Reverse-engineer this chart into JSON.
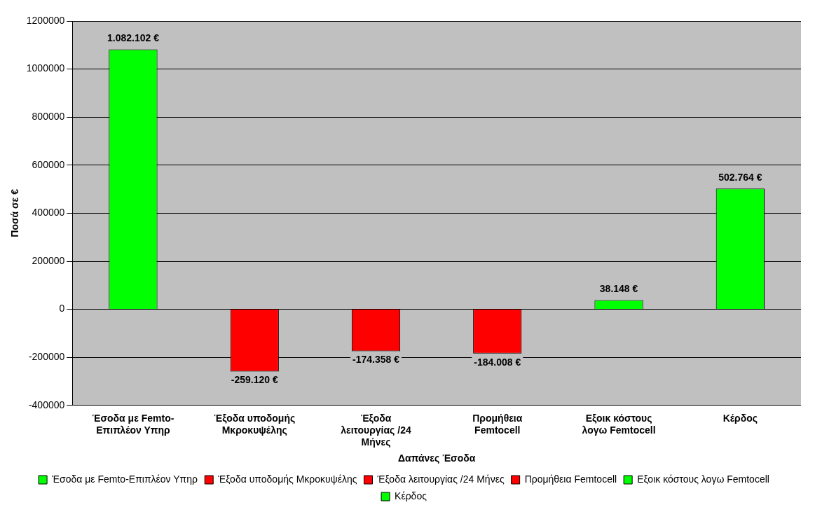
{
  "chart_data": {
    "type": "bar",
    "xlabel": "Δαπάνες Έσοδα",
    "ylabel": "Ποσά σε €",
    "categories": [
      "Έσοδα με Femto-Επιπλέον Υπηρ",
      "Έξοδα υποδομής Μκροκυψέλης",
      "Έξοδα λειτουργίας /24 Μήνες",
      "Προμήθεια Femtocell",
      "Εξοικ κόστους λογω Femtocell",
      "Κέρδος"
    ],
    "series": [
      {
        "name": "Έσοδα με Femto-Επιπλέον Υπηρ",
        "color": "#00ff00",
        "values": [
          1082102,
          null,
          null,
          null,
          null,
          null
        ],
        "value_labels": [
          "1.082.102 €",
          null,
          null,
          null,
          null,
          null
        ]
      },
      {
        "name": "Έξοδα υποδομής Μκροκυψέλης",
        "color": "#ff0000",
        "values": [
          null,
          -259120,
          null,
          null,
          null,
          null
        ],
        "value_labels": [
          null,
          "-259.120 €",
          null,
          null,
          null,
          null
        ]
      },
      {
        "name": "Έξοδα λειτουργίας /24 Μήνες",
        "color": "#ff0000",
        "values": [
          null,
          null,
          -174358,
          null,
          null,
          null
        ],
        "value_labels": [
          null,
          null,
          "-174.358 €",
          null,
          null,
          null
        ]
      },
      {
        "name": "Προμήθεια Femtocell",
        "color": "#ff0000",
        "values": [
          null,
          null,
          null,
          -184008,
          null,
          null
        ],
        "value_labels": [
          null,
          null,
          null,
          "-184.008 €",
          null,
          null
        ]
      },
      {
        "name": "Εξοικ κόστους λογω Femtocell",
        "color": "#00ff00",
        "values": [
          null,
          null,
          null,
          null,
          38148,
          null
        ],
        "value_labels": [
          null,
          null,
          null,
          null,
          "38.148 €",
          null
        ]
      },
      {
        "name": "Κέρδος",
        "color": "#00ff00",
        "values": [
          null,
          null,
          null,
          null,
          null,
          502764
        ],
        "value_labels": [
          null,
          null,
          null,
          null,
          null,
          "502.764 €"
        ]
      }
    ],
    "ylim": [
      -400000,
      1200000
    ],
    "yticks": [
      -400000,
      -200000,
      0,
      200000,
      400000,
      600000,
      800000,
      1000000,
      1200000
    ],
    "grid": "y",
    "legend": "bottom"
  }
}
